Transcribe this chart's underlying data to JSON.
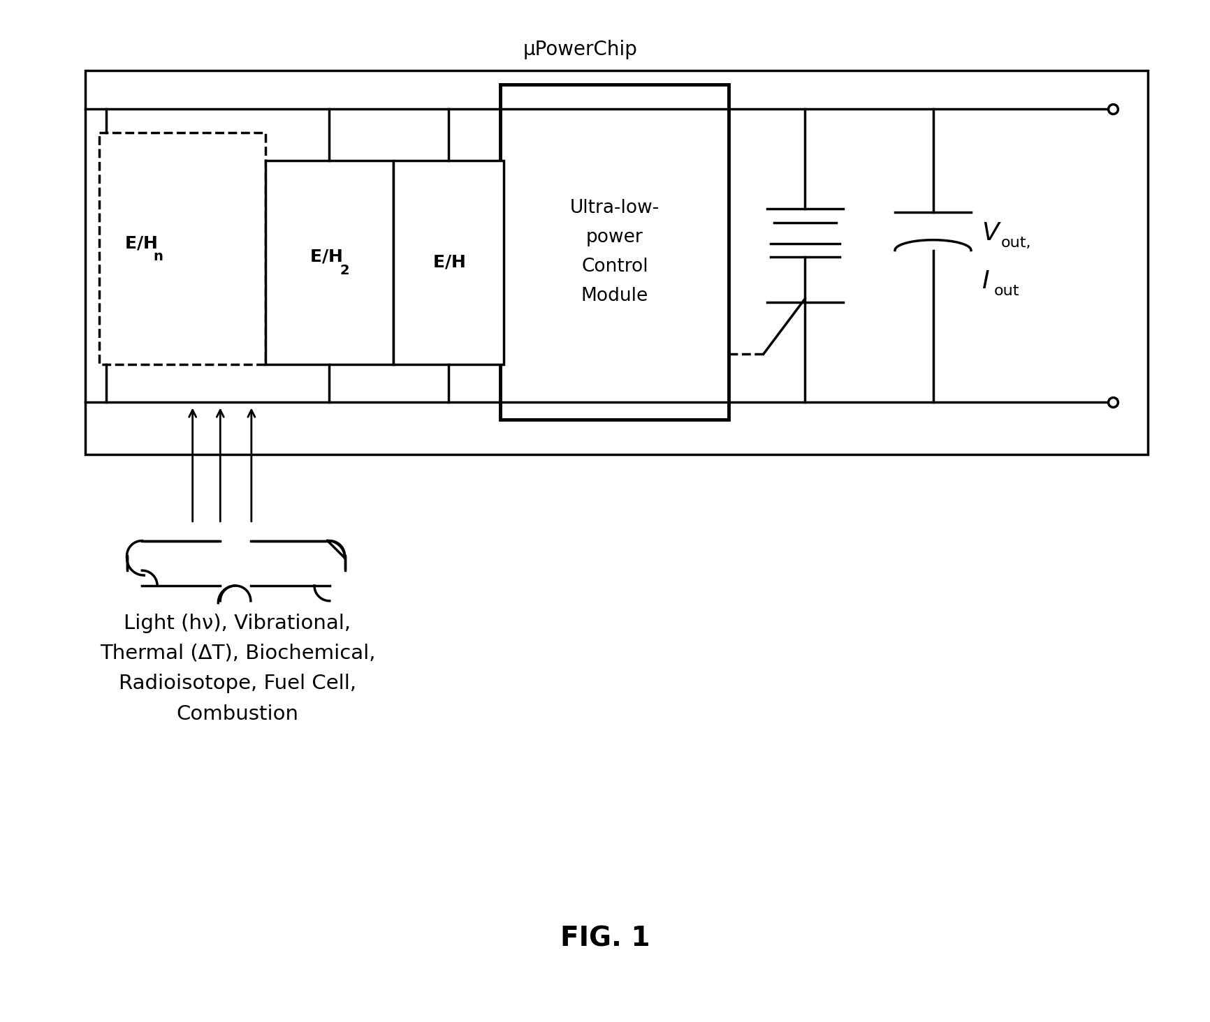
{
  "bg_color": "#ffffff",
  "line_color": "#000000",
  "fig_width": 17.32,
  "fig_height": 14.64,
  "title_label": "μPowerChip",
  "fig_label": "FIG. 1",
  "control_module_text": "Ultra-low-\npower\nControl\nModule",
  "eh_n_text": "E/H",
  "eh_n_sub": "n",
  "eh2_text": "E/H",
  "eh2_sub": "2",
  "eh_text": "E/H",
  "source_text": "Light (hν), Vibrational,\nThermal (ΔT), Biochemical,\nRadioisotope, Fuel Cell,\nCombustion"
}
